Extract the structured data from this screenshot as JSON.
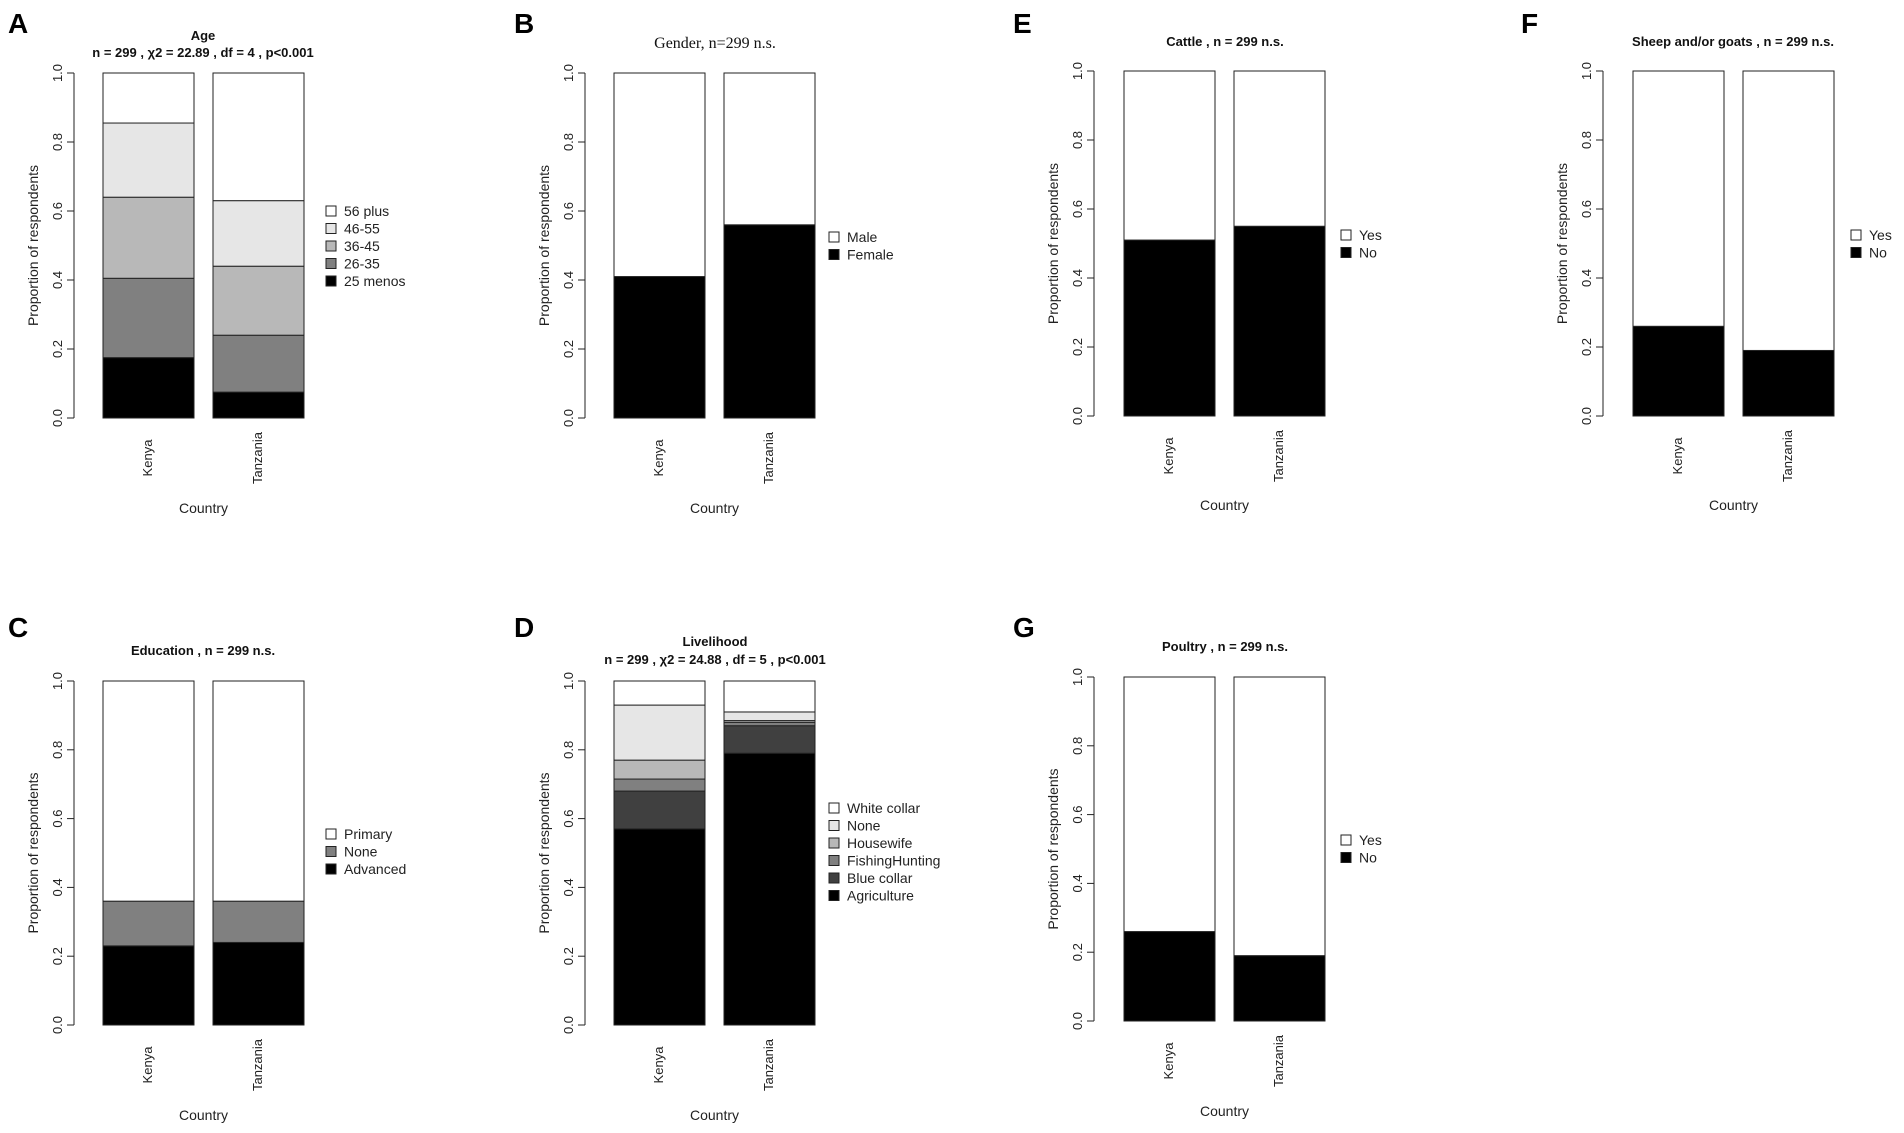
{
  "colors": {
    "white": "#ffffff",
    "light_gray": "#e6e6e6",
    "mid_light_gray": "#b8b8b8",
    "mid_gray": "#808080",
    "dark_gray": "#404040",
    "black": "#000000"
  },
  "chart_data": [
    {
      "panel": "A",
      "type": "bar",
      "stacked": true,
      "title": "Age",
      "subtitle": "n = 299 , χ2 = 22.89 , df = 4 , p<0.001",
      "xlabel": "Country",
      "ylabel": "Proportion of respondents",
      "categories": [
        "Kenya",
        "Tanzania"
      ],
      "ylim": [
        0,
        1
      ],
      "yticks": [
        "0.0",
        "0.2",
        "0.4",
        "0.6",
        "0.8",
        "1.0"
      ],
      "series": [
        {
          "name": "25 menos",
          "color": "#000000",
          "values": [
            0.175,
            0.075
          ]
        },
        {
          "name": "26-35",
          "color": "#808080",
          "values": [
            0.23,
            0.165
          ]
        },
        {
          "name": "36-45",
          "color": "#b8b8b8",
          "values": [
            0.235,
            0.2
          ]
        },
        {
          "name": "46-55",
          "color": "#e6e6e6",
          "values": [
            0.215,
            0.19
          ]
        },
        {
          "name": "56 plus",
          "color": "#ffffff",
          "values": [
            0.145,
            0.37
          ]
        }
      ],
      "legend_order": [
        "56 plus",
        "46-55",
        "36-45",
        "26-35",
        "25 menos"
      ]
    },
    {
      "panel": "B",
      "type": "bar",
      "stacked": true,
      "title": "Gender, n=299 n.s.",
      "subtitle": "",
      "xlabel": "Country",
      "ylabel": "Proportion of respondents",
      "categories": [
        "Kenya",
        "Tanzania"
      ],
      "ylim": [
        0,
        1
      ],
      "yticks": [
        "0.0",
        "0.2",
        "0.4",
        "0.6",
        "0.8",
        "1.0"
      ],
      "series": [
        {
          "name": "Female",
          "color": "#000000",
          "values": [
            0.41,
            0.56
          ]
        },
        {
          "name": "Male",
          "color": "#ffffff",
          "values": [
            0.59,
            0.44
          ]
        }
      ],
      "legend_order": [
        "Male",
        "Female"
      ]
    },
    {
      "panel": "C",
      "type": "bar",
      "stacked": true,
      "title": "Education , n = 299  n.s.",
      "subtitle": "",
      "xlabel": "Country",
      "ylabel": "Proportion of respondents",
      "categories": [
        "Kenya",
        "Tanzania"
      ],
      "ylim": [
        0,
        1
      ],
      "yticks": [
        "0.0",
        "0.2",
        "0.4",
        "0.6",
        "0.8",
        "1.0"
      ],
      "series": [
        {
          "name": "Advanced",
          "color": "#000000",
          "values": [
            0.23,
            0.24
          ]
        },
        {
          "name": "None",
          "color": "#808080",
          "values": [
            0.13,
            0.12
          ]
        },
        {
          "name": "Primary",
          "color": "#ffffff",
          "values": [
            0.64,
            0.64
          ]
        }
      ],
      "legend_order": [
        "Primary",
        "None",
        "Advanced"
      ]
    },
    {
      "panel": "D",
      "type": "bar",
      "stacked": true,
      "title": "Livelihood",
      "subtitle": "n = 299 , χ2 = 24.88 , df = 5 , p<0.001",
      "xlabel": "Country",
      "ylabel": "Proportion of respondents",
      "categories": [
        "Kenya",
        "Tanzania"
      ],
      "ylim": [
        0,
        1
      ],
      "yticks": [
        "0.0",
        "0.2",
        "0.4",
        "0.6",
        "0.8",
        "1.0"
      ],
      "series": [
        {
          "name": "Agriculture",
          "color": "#000000",
          "values": [
            0.57,
            0.79
          ]
        },
        {
          "name": "Blue collar",
          "color": "#404040",
          "values": [
            0.11,
            0.08
          ]
        },
        {
          "name": "FishingHunting",
          "color": "#808080",
          "values": [
            0.035,
            0.01
          ]
        },
        {
          "name": "Housewife",
          "color": "#b8b8b8",
          "values": [
            0.055,
            0.005
          ]
        },
        {
          "name": "None",
          "color": "#e6e6e6",
          "values": [
            0.16,
            0.025
          ]
        },
        {
          "name": "White collar",
          "color": "#ffffff",
          "values": [
            0.07,
            0.09
          ]
        }
      ],
      "legend_order": [
        "White collar",
        "None",
        "Housewife",
        "FishingHunting",
        "Blue collar",
        "Agriculture"
      ]
    },
    {
      "panel": "E",
      "type": "bar",
      "stacked": true,
      "title": "Cattle , n = 299  n.s.",
      "subtitle": "",
      "xlabel": "Country",
      "ylabel": "Proportion of respondents",
      "categories": [
        "Kenya",
        "Tanzania"
      ],
      "ylim": [
        0,
        1
      ],
      "yticks": [
        "0.0",
        "0.2",
        "0.4",
        "0.6",
        "0.8",
        "1.0"
      ],
      "series": [
        {
          "name": "No",
          "color": "#000000",
          "values": [
            0.51,
            0.55
          ]
        },
        {
          "name": "Yes",
          "color": "#ffffff",
          "values": [
            0.49,
            0.45
          ]
        }
      ],
      "legend_order": [
        "Yes",
        "No"
      ]
    },
    {
      "panel": "F",
      "type": "bar",
      "stacked": true,
      "title": "Sheep and/or goats , n = 299  n.s.",
      "subtitle": "",
      "xlabel": "Country",
      "ylabel": "Proportion of respondents",
      "categories": [
        "Kenya",
        "Tanzania"
      ],
      "ylim": [
        0,
        1
      ],
      "yticks": [
        "0.0",
        "0.2",
        "0.4",
        "0.6",
        "0.8",
        "1.0"
      ],
      "series": [
        {
          "name": "No",
          "color": "#000000",
          "values": [
            0.26,
            0.19
          ]
        },
        {
          "name": "Yes",
          "color": "#ffffff",
          "values": [
            0.74,
            0.81
          ]
        }
      ],
      "legend_order": [
        "Yes",
        "No"
      ]
    },
    {
      "panel": "G",
      "type": "bar",
      "stacked": true,
      "title": "Poultry , n = 299  n.s.",
      "subtitle": "",
      "xlabel": "Country",
      "ylabel": "Proportion of respondents",
      "categories": [
        "Kenya",
        "Tanzania"
      ],
      "ylim": [
        0,
        1
      ],
      "yticks": [
        "0.0",
        "0.2",
        "0.4",
        "0.6",
        "0.8",
        "1.0"
      ],
      "series": [
        {
          "name": "No",
          "color": "#000000",
          "values": [
            0.26,
            0.19
          ]
        },
        {
          "name": "Yes",
          "color": "#ffffff",
          "values": [
            0.74,
            0.81
          ]
        }
      ],
      "legend_order": [
        "Yes",
        "No"
      ]
    }
  ]
}
